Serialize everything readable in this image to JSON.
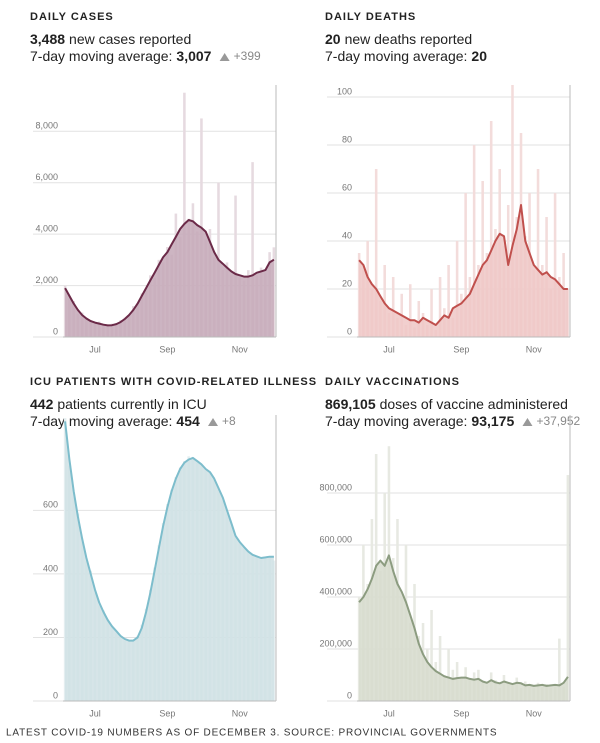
{
  "chart_data": [
    {
      "type": "combo",
      "title": "DAILY CASES",
      "headline": {
        "value": "3,488",
        "text": "new cases reported"
      },
      "average": {
        "label": "7-day moving average:",
        "value": "3,007",
        "change": "+399"
      },
      "categories": [
        null,
        null,
        null,
        null,
        null,
        null,
        null,
        "Jul",
        null,
        null,
        null,
        null,
        null,
        null,
        null,
        null,
        null,
        null,
        null,
        null,
        null,
        null,
        null,
        null,
        "Sep",
        null,
        null,
        null,
        null,
        null,
        null,
        null,
        null,
        null,
        null,
        null,
        null,
        null,
        null,
        null,
        null,
        "Nov",
        null,
        null,
        null,
        null,
        null,
        null,
        null,
        null
      ],
      "ylim": [
        0,
        9800
      ],
      "yticks": [
        0,
        {
          "value": 2000,
          "label": "2,000"
        },
        {
          "value": 4000,
          "label": "4,000"
        },
        {
          "value": 6000,
          "label": "6,000"
        },
        {
          "value": 8000,
          "label": "8,000"
        }
      ],
      "grid": true,
      "series": [
        {
          "type": "bar",
          "color": "#e6dae0",
          "values": [
            2000,
            1500,
            1400,
            900,
            950,
            700,
            650,
            500,
            600,
            450,
            400,
            520,
            480,
            650,
            750,
            800,
            1200,
            1250,
            1700,
            1800,
            2400,
            2300,
            3000,
            2900,
            3500,
            3200,
            4800,
            3900,
            9500,
            4600,
            5200,
            4100,
            8500,
            3800,
            4200,
            3100,
            6000,
            2600,
            2900,
            2400,
            5500,
            2300,
            2200,
            2600,
            6800,
            2400,
            2700,
            2500,
            3300,
            3488
          ]
        },
        {
          "type": "area",
          "color": "#6b2a48",
          "fill": "#c4a8b7",
          "values": [
            1900,
            1600,
            1300,
            1050,
            850,
            720,
            620,
            560,
            520,
            480,
            450,
            460,
            500,
            580,
            700,
            850,
            1050,
            1300,
            1600,
            1900,
            2200,
            2500,
            2800,
            3100,
            3300,
            3600,
            3900,
            4200,
            4400,
            4550,
            4500,
            4350,
            4250,
            4100,
            3700,
            3300,
            3000,
            2850,
            2700,
            2550,
            2450,
            2400,
            2350,
            2350,
            2400,
            2500,
            2550,
            2600,
            2900,
            3007
          ]
        }
      ]
    },
    {
      "type": "combo",
      "title": "DAILY DEATHS",
      "headline": {
        "value": "20",
        "text": "new deaths reported"
      },
      "average": {
        "label": "7-day moving average:",
        "value": "20"
      },
      "categories": [
        null,
        null,
        null,
        null,
        null,
        null,
        null,
        "Jul",
        null,
        null,
        null,
        null,
        null,
        null,
        null,
        null,
        null,
        null,
        null,
        null,
        null,
        null,
        null,
        null,
        "Sep",
        null,
        null,
        null,
        null,
        null,
        null,
        null,
        null,
        null,
        null,
        null,
        null,
        null,
        null,
        null,
        null,
        "Nov",
        null,
        null,
        null,
        null,
        null,
        null,
        null,
        null
      ],
      "ylim": [
        0,
        105
      ],
      "yticks": [
        0,
        20,
        40,
        60,
        80,
        100
      ],
      "grid": true,
      "series": [
        {
          "type": "bar",
          "color": "#f3dcdb",
          "values": [
            35,
            28,
            40,
            20,
            70,
            15,
            30,
            10,
            25,
            8,
            18,
            5,
            22,
            4,
            15,
            10,
            5,
            20,
            3,
            25,
            12,
            30,
            8,
            40,
            18,
            60,
            25,
            80,
            30,
            65,
            35,
            90,
            45,
            70,
            38,
            55,
            105,
            50,
            85,
            42,
            60,
            28,
            70,
            30,
            50,
            20,
            60,
            25,
            35,
            20
          ]
        },
        {
          "type": "area",
          "color": "#c0504d",
          "fill": "#eec7c5",
          "values": [
            32,
            30,
            25,
            22,
            20,
            17,
            14,
            12,
            11,
            10,
            9,
            8,
            7,
            7,
            6,
            8,
            7,
            6,
            5,
            7,
            9,
            8,
            12,
            13,
            14,
            16,
            18,
            22,
            26,
            30,
            32,
            36,
            40,
            43,
            42,
            30,
            38,
            45,
            55,
            40,
            35,
            30,
            28,
            26,
            27,
            25,
            24,
            22,
            20,
            20
          ]
        }
      ]
    },
    {
      "type": "combo",
      "title": "ICU PATIENTS WITH COVID-RELATED ILLNESS",
      "headline": {
        "value": "442",
        "text": "patients currently in ICU"
      },
      "average": {
        "label": "7-day moving average:",
        "value": "454",
        "change": "+8"
      },
      "categories": [
        null,
        null,
        null,
        null,
        null,
        null,
        null,
        "Jul",
        null,
        null,
        null,
        null,
        null,
        null,
        null,
        null,
        null,
        null,
        null,
        null,
        null,
        null,
        null,
        null,
        "Sep",
        null,
        null,
        null,
        null,
        null,
        null,
        null,
        null,
        null,
        null,
        null,
        null,
        null,
        null,
        null,
        null,
        "Nov",
        null,
        null,
        null,
        null,
        null,
        null,
        null,
        null
      ],
      "ylim": [
        0,
        900
      ],
      "yticks": [
        0,
        200,
        400,
        600
      ],
      "grid": true,
      "series": [
        {
          "type": "bar",
          "color": "#e4eef0",
          "values": [
            890,
            740,
            640,
            590,
            500,
            440,
            410,
            340,
            300,
            285,
            250,
            230,
            215,
            200,
            190,
            188,
            192,
            205,
            240,
            290,
            350,
            420,
            490,
            560,
            620,
            665,
            705,
            735,
            755,
            770,
            760,
            750,
            740,
            725,
            715,
            695,
            665,
            630,
            590,
            550,
            515,
            495,
            480,
            465,
            455,
            450,
            445,
            448,
            450,
            442
          ]
        },
        {
          "type": "area",
          "color": "#7dbdcc",
          "fill": "#cfe1e4",
          "values": [
            880,
            760,
            660,
            580,
            510,
            450,
            400,
            350,
            310,
            280,
            255,
            235,
            220,
            205,
            195,
            190,
            190,
            200,
            230,
            280,
            340,
            410,
            480,
            550,
            610,
            660,
            700,
            730,
            750,
            760,
            765,
            755,
            745,
            730,
            720,
            700,
            670,
            640,
            600,
            560,
            520,
            500,
            485,
            470,
            460,
            455,
            450,
            452,
            454,
            454
          ]
        }
      ]
    },
    {
      "type": "combo",
      "title": "DAILY VACCINATIONS",
      "headline": {
        "value": "869,105",
        "text": "doses of vaccine administered"
      },
      "average": {
        "label": "7-day moving average:",
        "value": "93,175",
        "change": "+37,952"
      },
      "categories": [
        null,
        null,
        null,
        null,
        null,
        null,
        null,
        "Jul",
        null,
        null,
        null,
        null,
        null,
        null,
        null,
        null,
        null,
        null,
        null,
        null,
        null,
        null,
        null,
        null,
        "Sep",
        null,
        null,
        null,
        null,
        null,
        null,
        null,
        null,
        null,
        null,
        null,
        null,
        null,
        null,
        null,
        null,
        "Nov",
        null,
        null,
        null,
        null,
        null,
        null,
        null,
        null
      ],
      "ylim": [
        0,
        1100000
      ],
      "yticks": [
        0,
        {
          "value": 200000,
          "label": "200,000"
        },
        {
          "value": 400000,
          "label": "400,000"
        },
        {
          "value": 600000,
          "label": "600,000"
        },
        {
          "value": 800000,
          "label": "800,000"
        }
      ],
      "grid": true,
      "series": [
        {
          "type": "bar",
          "color": "#e7e9e2",
          "values": [
            400000,
            600000,
            450000,
            700000,
            950000,
            500000,
            800000,
            980000,
            550000,
            700000,
            400000,
            600000,
            300000,
            450000,
            250000,
            300000,
            200000,
            350000,
            150000,
            250000,
            100000,
            200000,
            120000,
            150000,
            90000,
            130000,
            80000,
            110000,
            120000,
            70000,
            60000,
            110000,
            80000,
            50000,
            100000,
            70000,
            60000,
            90000,
            50000,
            75000,
            60000,
            50000,
            70000,
            55000,
            65000,
            50000,
            60000,
            240000,
            55000,
            869105
          ]
        },
        {
          "type": "area",
          "color": "#8c9c80",
          "fill": "#d6dacd",
          "values": [
            380000,
            400000,
            430000,
            470000,
            520000,
            540000,
            520000,
            560000,
            500000,
            450000,
            420000,
            380000,
            330000,
            280000,
            220000,
            180000,
            150000,
            130000,
            115000,
            105000,
            95000,
            90000,
            85000,
            88000,
            90000,
            90000,
            85000,
            82000,
            85000,
            75000,
            70000,
            80000,
            72000,
            68000,
            75000,
            70000,
            65000,
            70000,
            68000,
            60000,
            62000,
            58000,
            60000,
            62000,
            58000,
            60000,
            62000,
            60000,
            70000,
            93175
          ]
        }
      ]
    }
  ],
  "source": "LATEST COVID-19 NUMBERS AS OF DECEMBER 3. SOURCE: PROVINCIAL GOVERNMENTS"
}
